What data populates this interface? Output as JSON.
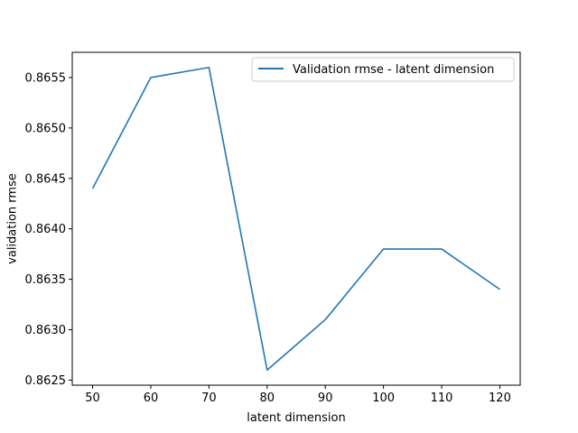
{
  "chart_data": {
    "type": "line",
    "x": [
      50,
      60,
      70,
      80,
      90,
      100,
      110,
      120
    ],
    "series": [
      {
        "name": "Validation rmse - latent dimension",
        "color": "#1f77b4",
        "values": [
          0.8644,
          0.8655,
          0.8656,
          0.8626,
          0.8631,
          0.8638,
          0.8638,
          0.8634
        ]
      }
    ],
    "xlabel": "latent dimension",
    "ylabel": "validation rmse",
    "xticks": [
      "50",
      "60",
      "70",
      "80",
      "90",
      "100",
      "110",
      "120"
    ],
    "yticks": [
      "0.8625",
      "0.8630",
      "0.8635",
      "0.8640",
      "0.8645",
      "0.8650",
      "0.8655"
    ],
    "xlim": [
      46.5,
      123.5
    ],
    "ylim": [
      0.86245,
      0.86575
    ],
    "grid": false,
    "legend_position": "top-right"
  }
}
